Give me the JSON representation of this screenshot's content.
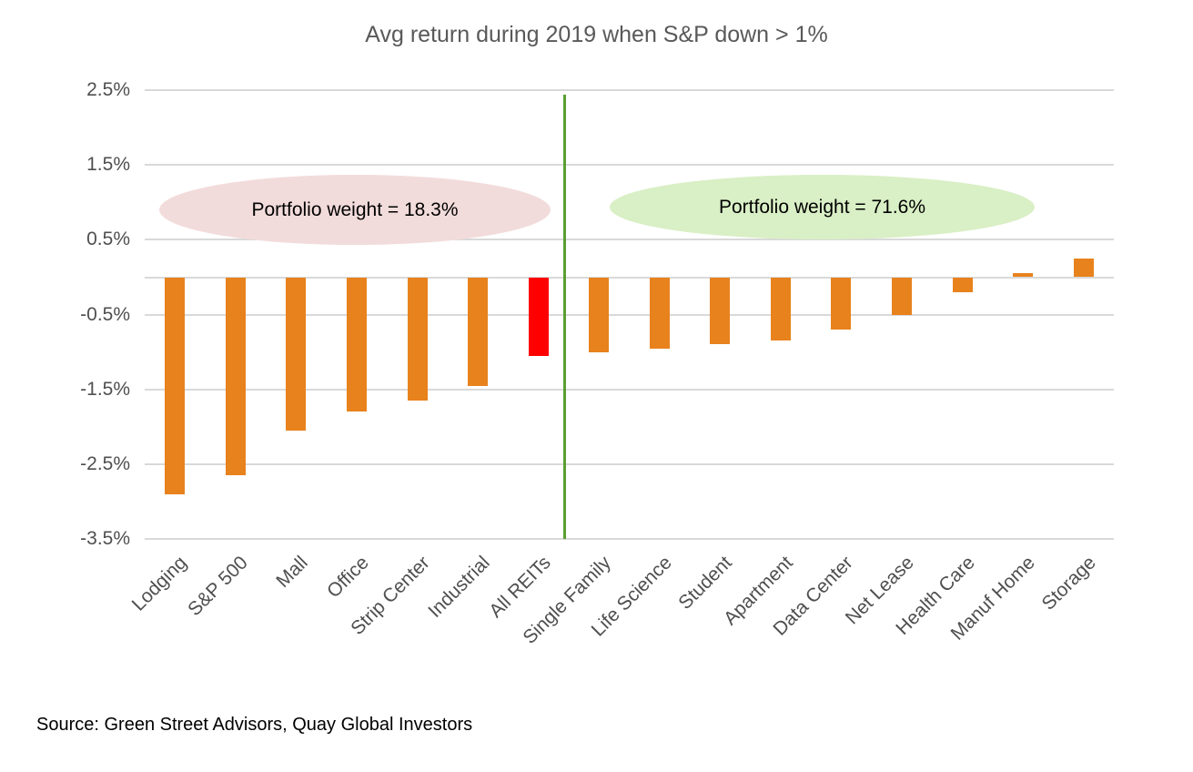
{
  "title": "Avg return during 2019 when S&P down > 1%",
  "source": "Source: Green Street Advisors, Quay Global Investors",
  "annotations": {
    "left": {
      "label": "Portfolio weight = 18.3%",
      "fill": "#f2dcdb"
    },
    "right": {
      "label": "Portfolio weight = 71.6%",
      "fill": "#d9efc5"
    }
  },
  "colors": {
    "bar_orange": "#e8821d",
    "bar_highlight_red": "#ff0000",
    "divider_green": "#5a9e32",
    "gridline_gray": "#d9d9d9",
    "title_text_gray": "#595959",
    "axis_text_gray": "#4f4f4f",
    "source_text": "#000000"
  },
  "chart_data": {
    "type": "bar",
    "title": "Avg return during 2019 when S&P down > 1%",
    "categories": [
      "Lodging",
      "S&P 500",
      "Mall",
      "Office",
      "Strip Center",
      "Industrial",
      "All REITs",
      "Single Family",
      "Life Science",
      "Student",
      "Apartment",
      "Data Center",
      "Net Lease",
      "Health Care",
      "Manuf Home",
      "Storage"
    ],
    "values": [
      -2.9,
      -2.65,
      -2.05,
      -1.8,
      -1.65,
      -1.45,
      -1.05,
      -1.0,
      -0.95,
      -0.9,
      -0.85,
      -0.7,
      -0.5,
      -0.2,
      0.05,
      0.25
    ],
    "value_unit": "%",
    "highlight_category": "All REITs",
    "highlight_note": "All REITs bar drawn in red; all other bars orange",
    "yticks": [
      {
        "label": "2.5%",
        "value": 2.5
      },
      {
        "label": "1.5%",
        "value": 1.5
      },
      {
        "label": "0.5%",
        "value": 0.5
      },
      {
        "label": "-0.5%",
        "value": -0.5
      },
      {
        "label": "-1.5%",
        "value": -1.5
      },
      {
        "label": "-2.5%",
        "value": -2.5
      },
      {
        "label": "-3.5%",
        "value": -3.5
      }
    ],
    "ylim": [
      -3.5,
      2.5
    ],
    "grid": true,
    "legend": "none",
    "divider_after_category": "All REITs",
    "annotations": [
      "Portfolio weight = 18.3%",
      "Portfolio weight = 71.6%"
    ]
  }
}
